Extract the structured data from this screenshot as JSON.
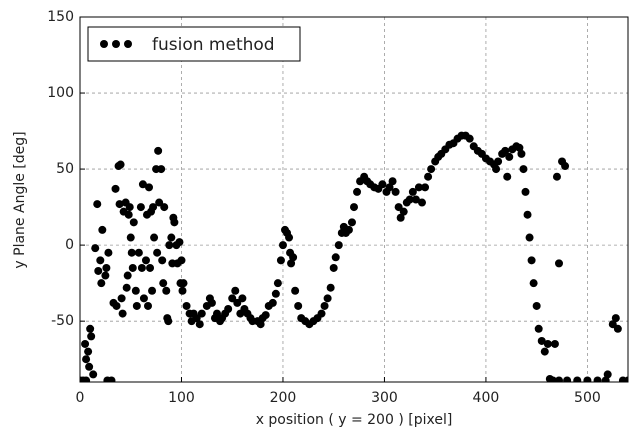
{
  "chart_data": {
    "type": "scatter",
    "x_label": "x position ( y = 200 ) [pixel]",
    "y_label": "y Plane Angle [deg]",
    "x": [
      0,
      3,
      6,
      5,
      6,
      8,
      9,
      10,
      11,
      13,
      15,
      17,
      18,
      20,
      21,
      22,
      25,
      26,
      28,
      27,
      31,
      33,
      35,
      36,
      38,
      39,
      40,
      41,
      42,
      43,
      45,
      46,
      47,
      48,
      49,
      50,
      51,
      52,
      53,
      55,
      56,
      58,
      60,
      61,
      62,
      63,
      65,
      66,
      67,
      68,
      69,
      70,
      71,
      72,
      73,
      75,
      76,
      77,
      78,
      80,
      81,
      82,
      83,
      85,
      86,
      87,
      88,
      90,
      91,
      92,
      93,
      95,
      96,
      98,
      99,
      100,
      101,
      102,
      105,
      108,
      110,
      112,
      115,
      118,
      120,
      125,
      128,
      130,
      133,
      135,
      138,
      140,
      143,
      146,
      150,
      153,
      155,
      158,
      160,
      162,
      165,
      168,
      170,
      175,
      178,
      180,
      183,
      186,
      190,
      193,
      195,
      198,
      200,
      202,
      204,
      206,
      207,
      208,
      210,
      212,
      215,
      218,
      222,
      226,
      230,
      234,
      238,
      241,
      244,
      247,
      250,
      252,
      255,
      258,
      260,
      262,
      265,
      268,
      270,
      273,
      276,
      280,
      283,
      286,
      290,
      294,
      298,
      302,
      305,
      308,
      311,
      314,
      316,
      319,
      322,
      325,
      328,
      331,
      334,
      337,
      340,
      343,
      346,
      350,
      353,
      356,
      360,
      364,
      368,
      372,
      376,
      380,
      384,
      388,
      392,
      396,
      400,
      404,
      408,
      410,
      412,
      416,
      419,
      421,
      423,
      426,
      430,
      433,
      435,
      437,
      439,
      441,
      443,
      445,
      447,
      450,
      452,
      455,
      458,
      461,
      463,
      466,
      468,
      470,
      472,
      475,
      478,
      472,
      480,
      490,
      500,
      510,
      518,
      520,
      525,
      528,
      530,
      535,
      540
    ],
    "series": [
      {
        "name": "fusion method",
        "color": "#000000",
        "values": [
          -89,
          -89,
          -89,
          -65,
          -75,
          -70,
          -80,
          -55,
          -60,
          -85,
          -2,
          27,
          -17,
          -10,
          -25,
          10,
          -20,
          -15,
          -5,
          -89,
          -89,
          -38,
          37,
          -40,
          52,
          27,
          53,
          -35,
          -45,
          22,
          28,
          -28,
          -20,
          20,
          25,
          5,
          -5,
          -15,
          15,
          -30,
          -40,
          -5,
          25,
          -15,
          40,
          -35,
          -10,
          20,
          -40,
          38,
          -15,
          22,
          -30,
          25,
          5,
          50,
          -5,
          62,
          28,
          50,
          -10,
          -25,
          25,
          -30,
          -48,
          -50,
          0,
          5,
          -12,
          18,
          15,
          0,
          -12,
          2,
          -25,
          -10,
          -30,
          -25,
          -40,
          -45,
          -50,
          -45,
          -48,
          -52,
          -45,
          -40,
          -35,
          -38,
          -48,
          -45,
          -50,
          -48,
          -45,
          -42,
          -35,
          -30,
          -38,
          -45,
          -35,
          -42,
          -45,
          -48,
          -50,
          -50,
          -52,
          -48,
          -46,
          -40,
          -38,
          -32,
          -25,
          -10,
          0,
          10,
          8,
          5,
          -5,
          -12,
          -8,
          -30,
          -40,
          -48,
          -50,
          -52,
          -50,
          -48,
          -45,
          -40,
          -35,
          -28,
          -15,
          -8,
          0,
          8,
          12,
          8,
          10,
          15,
          25,
          35,
          42,
          45,
          42,
          40,
          38,
          37,
          40,
          35,
          38,
          42,
          35,
          25,
          18,
          22,
          28,
          30,
          35,
          30,
          38,
          28,
          38,
          45,
          50,
          55,
          58,
          60,
          63,
          66,
          67,
          70,
          72,
          72,
          70,
          65,
          62,
          60,
          57,
          55,
          53,
          50,
          55,
          60,
          62,
          45,
          58,
          63,
          65,
          64,
          60,
          50,
          35,
          20,
          5,
          -10,
          -25,
          -40,
          -55,
          -63,
          -70,
          -65,
          -88,
          -89,
          -65,
          45,
          -12,
          55,
          52,
          -89,
          -89,
          -89,
          -89,
          -89,
          -89,
          -85,
          -52,
          -48,
          -55,
          -89,
          -89
        ]
      }
    ],
    "xlim": [
      0,
      540
    ],
    "ylim": [
      -90,
      150
    ],
    "xticks": [
      0,
      100,
      200,
      300,
      400,
      500
    ],
    "yticks": [
      -50,
      0,
      50,
      100,
      150
    ],
    "grid": true,
    "legend": "upper left"
  }
}
